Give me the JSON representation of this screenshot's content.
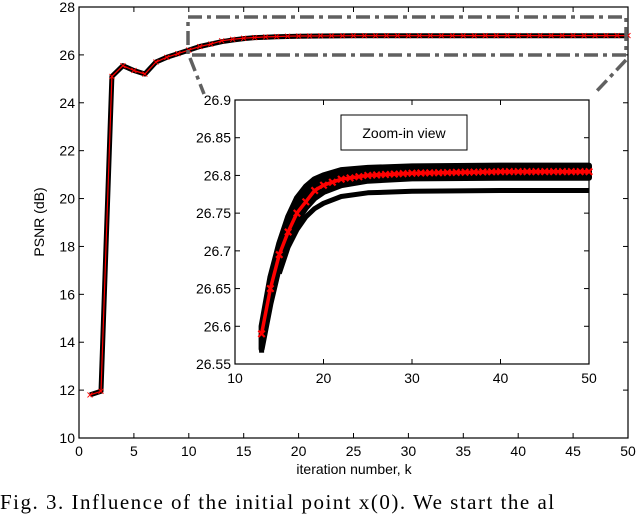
{
  "chart_data": {
    "type": "line",
    "main": {
      "xlabel": "iteration number, k",
      "ylabel": "PSNR (dB)",
      "xlim": [
        0,
        50
      ],
      "ylim": [
        10,
        28
      ],
      "xticks": [
        0,
        5,
        10,
        15,
        20,
        25,
        30,
        35,
        40,
        45,
        50
      ],
      "yticks": [
        10,
        12,
        14,
        16,
        18,
        20,
        22,
        24,
        26,
        28
      ],
      "grid": false,
      "series": [
        {
          "name": "PSNR curves (black, multiple initial points)",
          "color": "#000000",
          "x": [
            1,
            2,
            3,
            4,
            5,
            6,
            7,
            8,
            9,
            10,
            11,
            12,
            13,
            14,
            15,
            16,
            17,
            18,
            19,
            20,
            22,
            25,
            30,
            35,
            40,
            45,
            50
          ],
          "values": [
            11.8,
            11.95,
            25.1,
            25.55,
            25.35,
            25.2,
            25.7,
            25.9,
            26.05,
            26.2,
            26.35,
            26.45,
            26.55,
            26.62,
            26.68,
            26.72,
            26.74,
            26.76,
            26.77,
            26.78,
            26.79,
            26.8,
            26.8,
            26.8,
            26.8,
            26.8,
            26.8
          ]
        },
        {
          "name": "PSNR curve (red, x markers)",
          "color": "#ff0000",
          "marker": "x",
          "x": [
            1,
            2,
            3,
            4,
            5,
            6,
            7,
            8,
            9,
            10,
            11,
            12,
            13,
            14,
            15,
            16,
            17,
            18,
            19,
            20,
            22,
            25,
            30,
            35,
            40,
            45,
            50
          ],
          "values": [
            11.8,
            11.95,
            25.1,
            25.55,
            25.35,
            25.2,
            25.7,
            25.9,
            26.05,
            26.2,
            26.35,
            26.45,
            26.59,
            26.65,
            26.695,
            26.725,
            26.75,
            26.765,
            26.78,
            26.787,
            26.795,
            26.8,
            26.803,
            26.804,
            26.805,
            26.805,
            26.805
          ]
        }
      ],
      "annotations": [
        {
          "type": "dash-dot rectangle",
          "x_range": [
            10,
            50
          ],
          "y_range": [
            26.0,
            27.6
          ],
          "color": "#606060"
        },
        {
          "type": "dash-dot connector lines",
          "to": "inset axes"
        }
      ]
    },
    "inset": {
      "title": "Zoom-in view",
      "xlim": [
        10,
        50
      ],
      "ylim": [
        26.55,
        26.9
      ],
      "xticks": [
        10,
        20,
        30,
        40,
        50
      ],
      "yticks": [
        26.55,
        26.6,
        26.65,
        26.7,
        26.75,
        26.8,
        26.85,
        26.9
      ],
      "series": [
        {
          "name": "upper black band",
          "color": "#000000",
          "x": [
            13,
            14,
            15,
            16,
            17,
            18,
            19,
            20,
            22,
            25,
            30,
            40,
            50
          ],
          "values": [
            26.6,
            26.665,
            26.71,
            26.745,
            26.77,
            26.785,
            26.795,
            26.8,
            26.807,
            26.81,
            26.812,
            26.813,
            26.813
          ]
        },
        {
          "name": "red curve",
          "color": "#ff0000",
          "marker": "x",
          "x": [
            13,
            14,
            15,
            16,
            17,
            18,
            19,
            20,
            22,
            25,
            30,
            40,
            50
          ],
          "values": [
            26.59,
            26.65,
            26.695,
            26.725,
            26.75,
            26.765,
            26.78,
            26.787,
            26.795,
            26.8,
            26.803,
            26.805,
            26.805
          ]
        },
        {
          "name": "middle black band",
          "color": "#000000",
          "x": [
            13,
            14,
            15,
            16,
            17,
            18,
            19,
            20,
            22,
            25,
            30,
            40,
            50
          ],
          "values": [
            26.57,
            26.63,
            26.68,
            26.715,
            26.74,
            26.757,
            26.77,
            26.778,
            26.787,
            26.793,
            26.796,
            26.797,
            26.797
          ]
        },
        {
          "name": "lower black curve",
          "color": "#000000",
          "x": [
            15,
            16,
            17,
            18,
            19,
            20,
            22,
            25,
            30,
            40,
            50
          ],
          "values": [
            26.67,
            26.705,
            26.728,
            26.745,
            26.756,
            26.763,
            26.772,
            26.777,
            26.779,
            26.78,
            26.78
          ]
        }
      ]
    }
  },
  "figure": {
    "xlabel": "iteration number, k",
    "ylabel": "PSNR (dB)",
    "inset_legend": "Zoom-in view",
    "caption": "Fig. 3.  Influence of the initial point x(0). We start the al"
  }
}
